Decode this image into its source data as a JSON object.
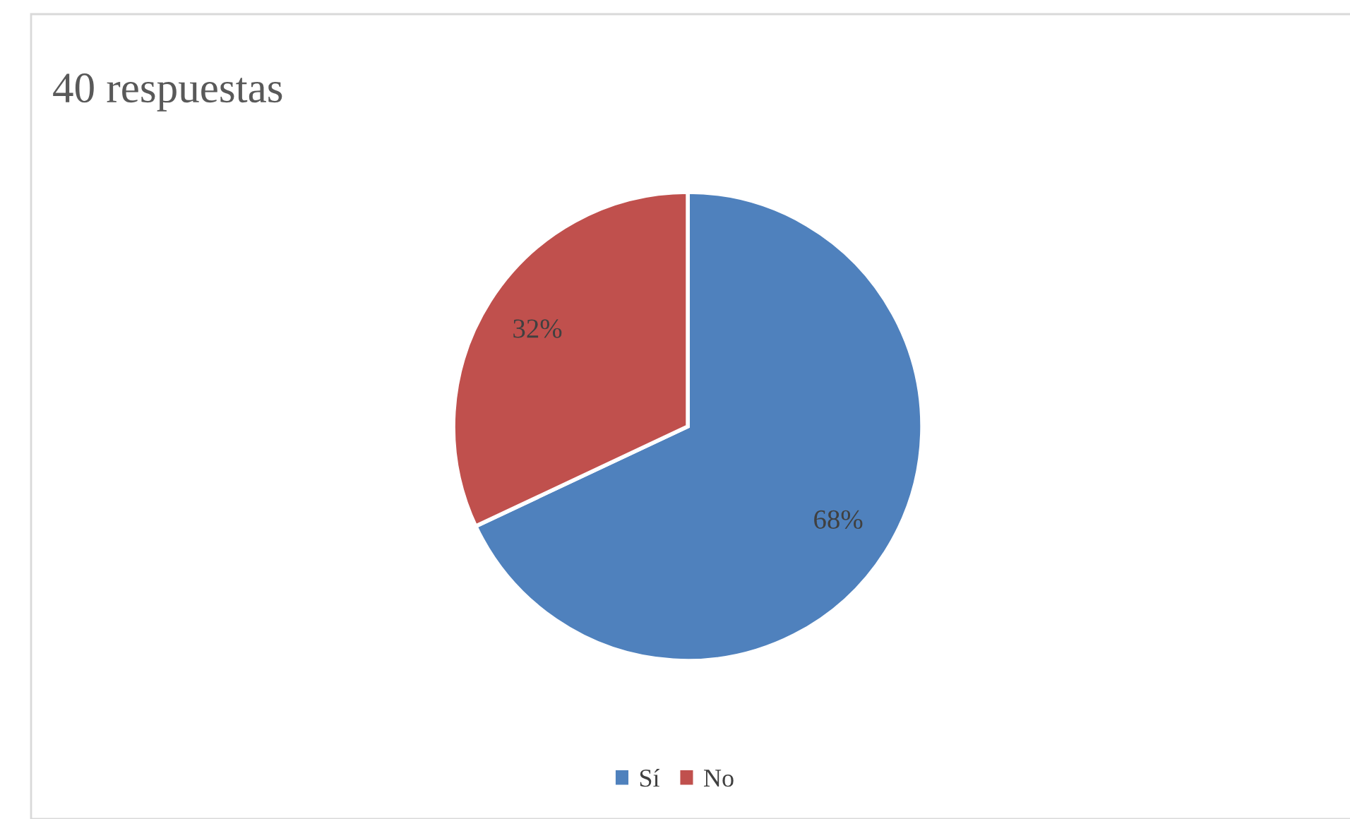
{
  "chart_data": {
    "type": "pie",
    "title": "40 respuestas",
    "categories": [
      "Sí",
      "No"
    ],
    "values": [
      68,
      32
    ],
    "colors": [
      "#4f81bd",
      "#c0504d"
    ],
    "value_labels": [
      "68%",
      "32%"
    ],
    "legend": "bottom"
  }
}
